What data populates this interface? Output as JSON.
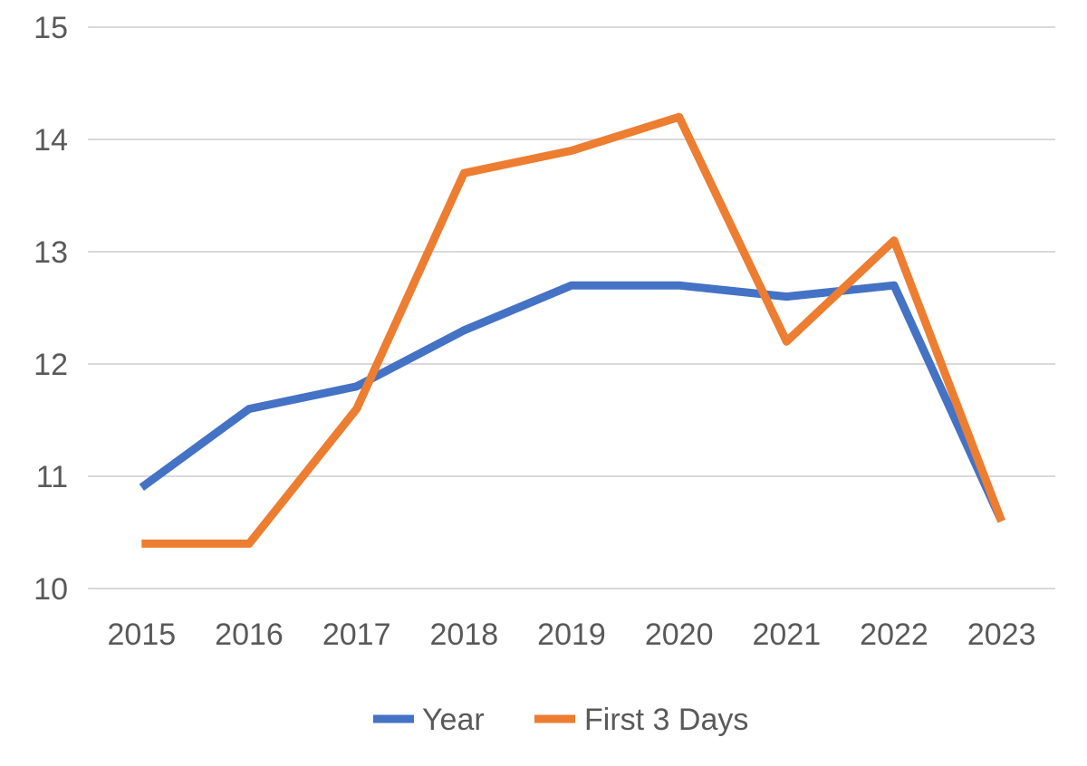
{
  "chart_data": {
    "type": "line",
    "title": "",
    "xlabel": "",
    "ylabel": "",
    "categories": [
      "2015",
      "2016",
      "2017",
      "2018",
      "2019",
      "2020",
      "2021",
      "2022",
      "2023"
    ],
    "ylim": [
      10,
      15
    ],
    "yticks": [
      10,
      11,
      12,
      13,
      14,
      15
    ],
    "grid": true,
    "legend_position": "bottom",
    "series": [
      {
        "name": "Year",
        "color": "#4472C4",
        "values": [
          10.9,
          11.6,
          11.8,
          12.3,
          12.7,
          12.7,
          12.6,
          12.7,
          10.6
        ]
      },
      {
        "name": "First 3 Days",
        "color": "#ED7D31",
        "values": [
          10.4,
          10.4,
          11.6,
          13.7,
          13.9,
          14.2,
          12.2,
          13.1,
          10.6
        ]
      }
    ]
  }
}
